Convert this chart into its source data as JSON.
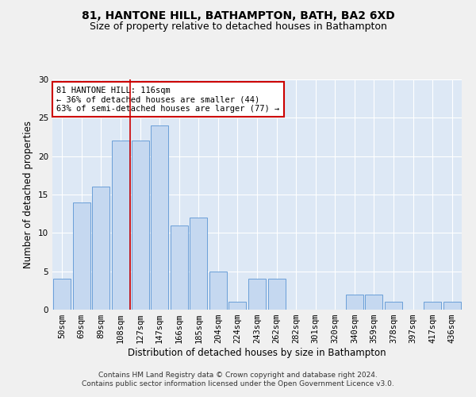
{
  "title1": "81, HANTONE HILL, BATHAMPTON, BATH, BA2 6XD",
  "title2": "Size of property relative to detached houses in Bathampton",
  "xlabel": "Distribution of detached houses by size in Bathampton",
  "ylabel": "Number of detached properties",
  "categories": [
    "50sqm",
    "69sqm",
    "89sqm",
    "108sqm",
    "127sqm",
    "147sqm",
    "166sqm",
    "185sqm",
    "204sqm",
    "224sqm",
    "243sqm",
    "262sqm",
    "282sqm",
    "301sqm",
    "320sqm",
    "340sqm",
    "359sqm",
    "378sqm",
    "397sqm",
    "417sqm",
    "436sqm"
  ],
  "values": [
    4,
    14,
    16,
    22,
    22,
    24,
    11,
    12,
    5,
    1,
    4,
    4,
    0,
    0,
    0,
    2,
    2,
    1,
    0,
    1,
    1
  ],
  "bar_color": "#c5d8f0",
  "bar_edge_color": "#6a9fd8",
  "vline_x_index": 3.5,
  "vline_color": "#cc0000",
  "annotation_text": "81 HANTONE HILL: 116sqm\n← 36% of detached houses are smaller (44)\n63% of semi-detached houses are larger (77) →",
  "annotation_box_color": "#ffffff",
  "annotation_box_edge": "#cc0000",
  "ylim": [
    0,
    30
  ],
  "yticks": [
    0,
    5,
    10,
    15,
    20,
    25,
    30
  ],
  "footer": "Contains HM Land Registry data © Crown copyright and database right 2024.\nContains public sector information licensed under the Open Government Licence v3.0.",
  "bg_color": "#dde8f5",
  "fig_color": "#f0f0f0",
  "grid_color": "#ffffff",
  "title1_fontsize": 10,
  "title2_fontsize": 9,
  "xlabel_fontsize": 8.5,
  "ylabel_fontsize": 8.5,
  "tick_fontsize": 7.5,
  "annotation_fontsize": 7.5,
  "footer_fontsize": 6.5
}
